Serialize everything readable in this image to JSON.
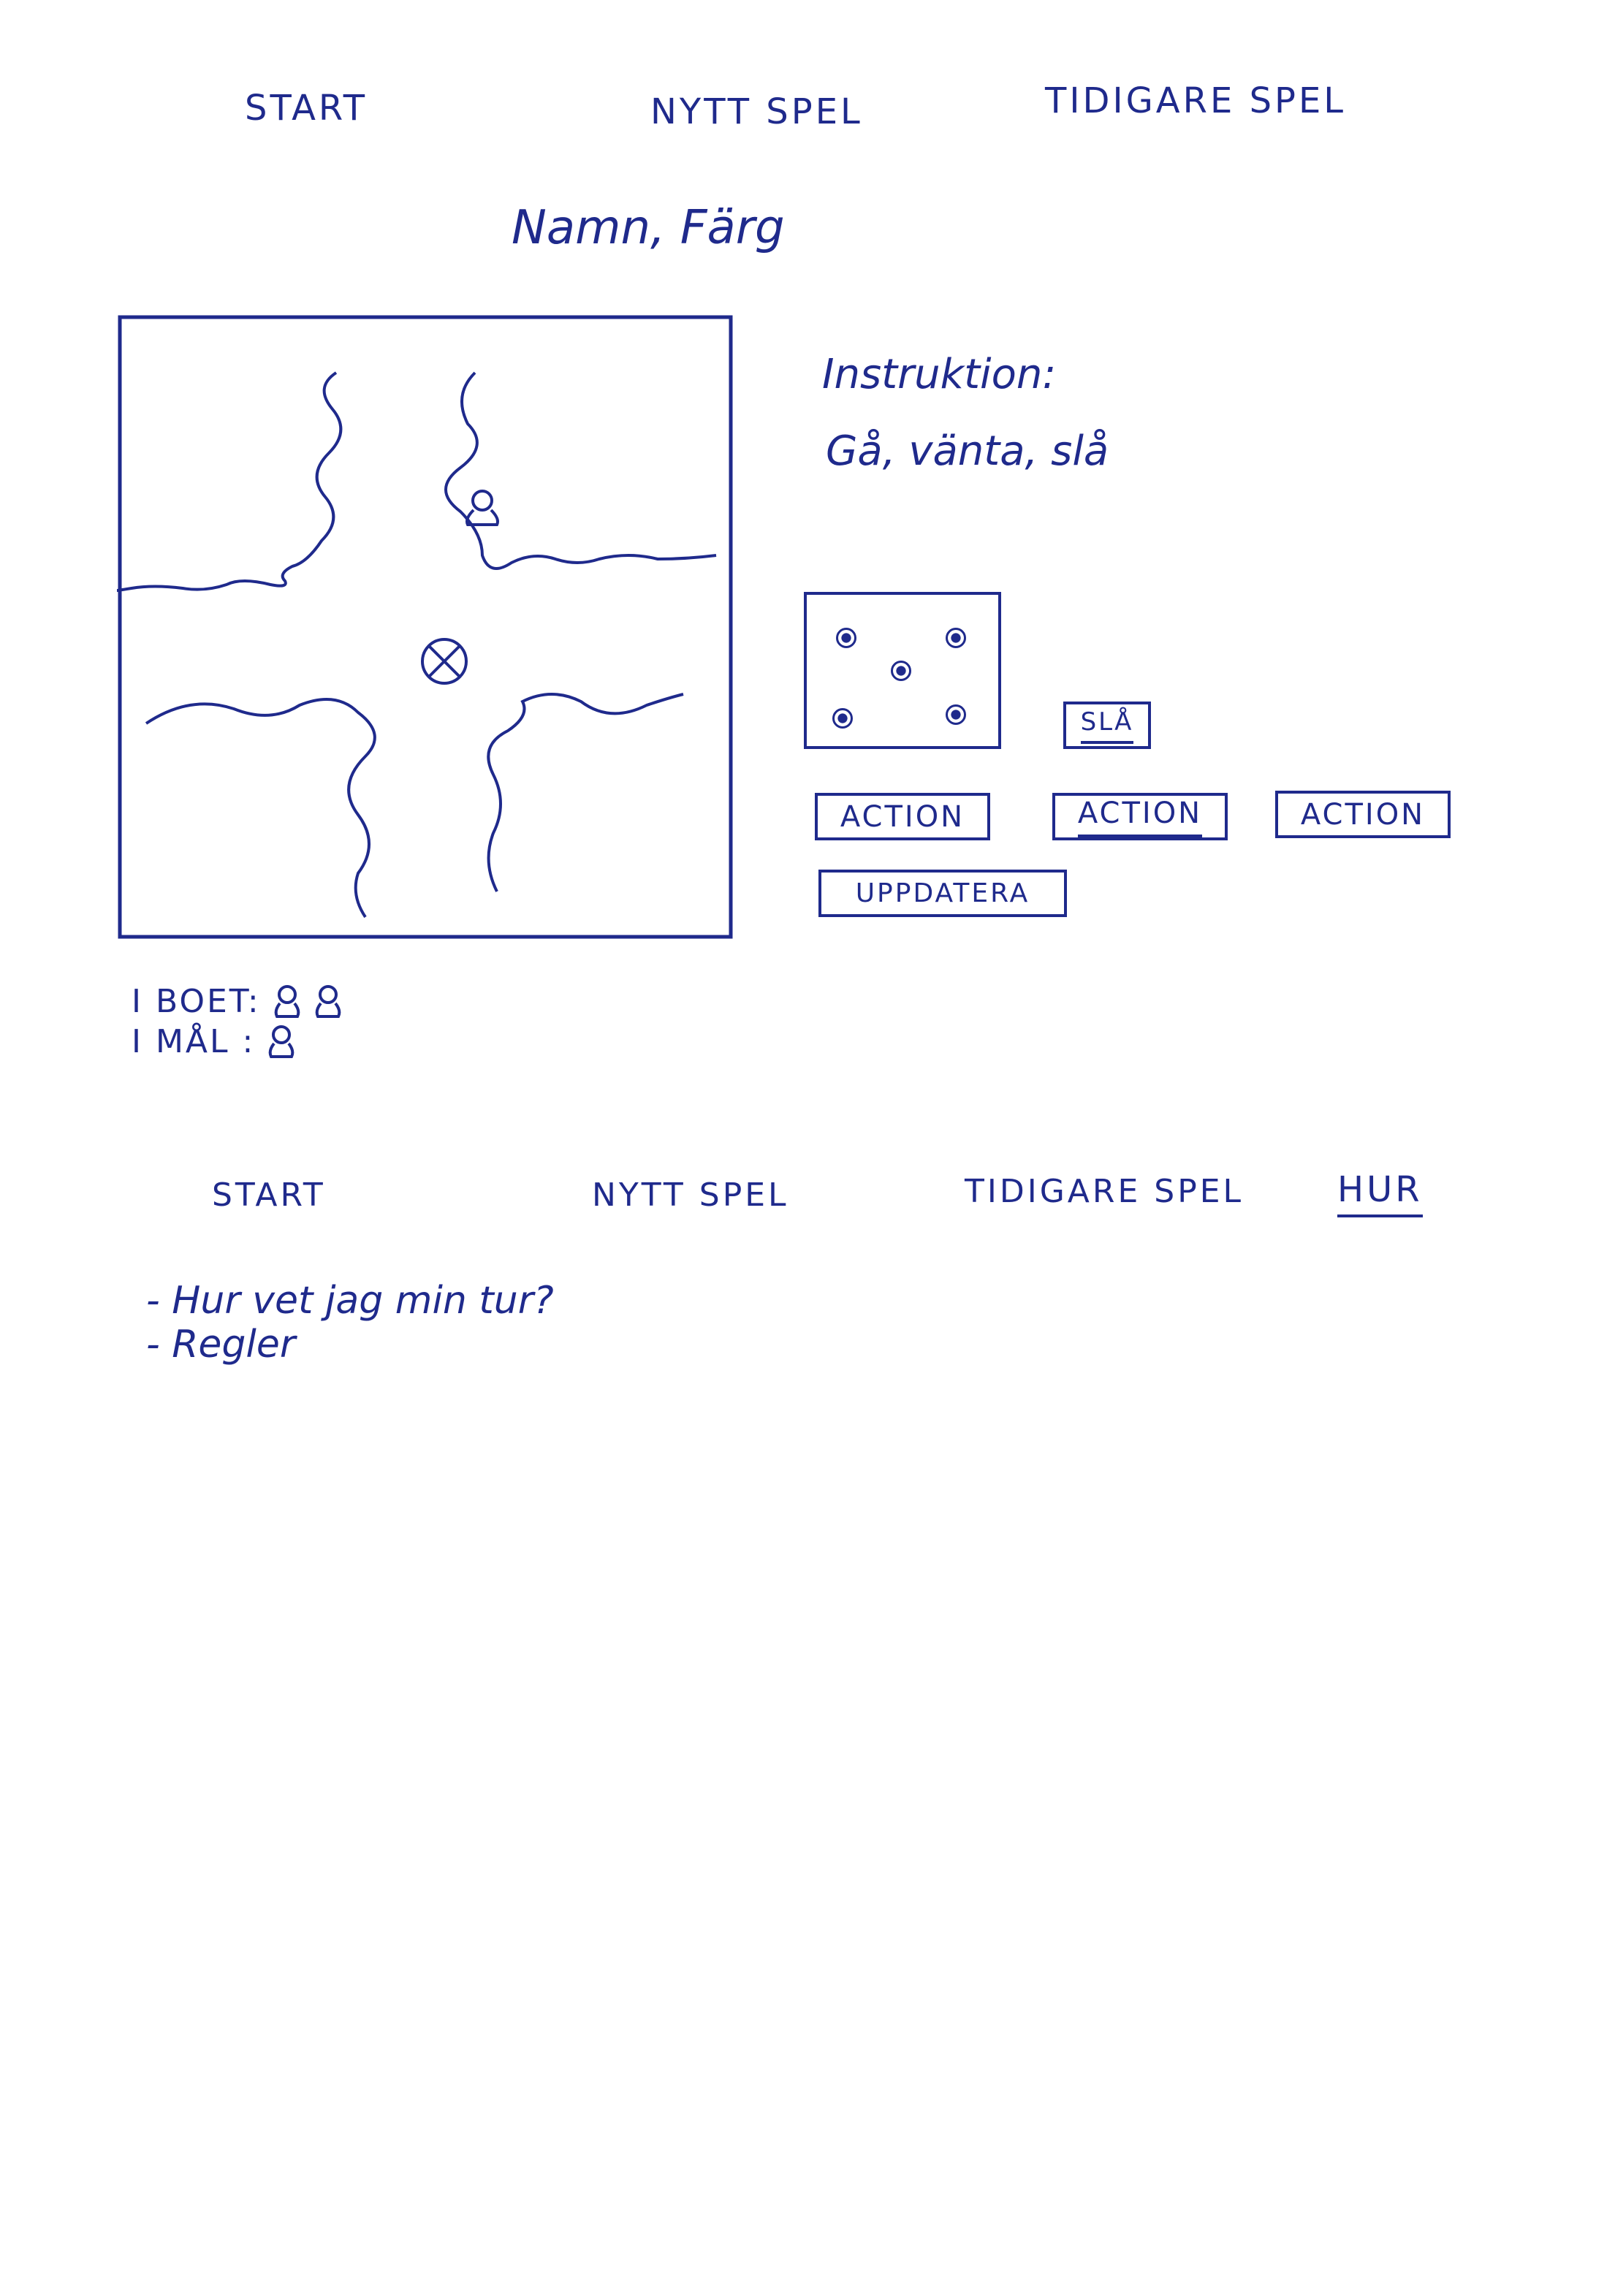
{
  "nav_top": {
    "start": "START",
    "nytt_spel": "NYTT SPEL",
    "tidigare_spel": "TIDIGARE SPEL"
  },
  "player_info": "Namn,   Färg",
  "instruction": {
    "label": "Instruktion:",
    "text": "Gå, vänta, slå"
  },
  "buttons": {
    "sla": "SLÅ",
    "action_1": "ACTION",
    "action_2": "ACTION",
    "action_3": "ACTION",
    "uppdatera": "UPPDATERA"
  },
  "status": {
    "i_boet_label": "I BOET:",
    "i_mal_label": "I MÅL :"
  },
  "nav_bottom": {
    "start": "START",
    "nytt_spel": "NYTT SPEL",
    "tidigare_spel": "TIDIGARE SPEL",
    "hur": "HUR"
  },
  "help_list": [
    "- Hur  vet jag  min tur?",
    "- Regler"
  ],
  "dice": {
    "value": 5
  },
  "colors": {
    "ink": "#1f2a8c",
    "paper": "#ffffff"
  }
}
